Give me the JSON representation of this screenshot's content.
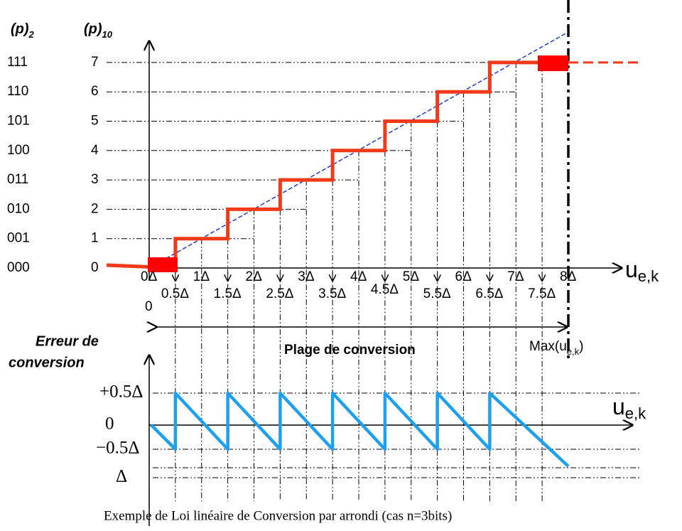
{
  "header": {
    "binary": {
      "text": "(p)",
      "sub": "2"
    },
    "decimal": {
      "text": "(p)",
      "sub": "10"
    }
  },
  "binary_codes": [
    "000",
    "001",
    "010",
    "011",
    "100",
    "101",
    "110",
    "111"
  ],
  "decimal_levels": [
    "0",
    "1",
    "2",
    "3",
    "4",
    "5",
    "6",
    "7"
  ],
  "x_labels": [
    "0Δ",
    "1Δ",
    "2Δ",
    "3Δ",
    "4Δ",
    "5Δ",
    "6Δ",
    "7Δ",
    "8Δ"
  ],
  "x_half_labels": [
    "0.5Δ",
    "1.5Δ",
    "2.5Δ",
    "3.5Δ",
    "4.5Δ",
    "5.5Δ",
    "6.5Δ",
    "7.5Δ"
  ],
  "origin_label": "0",
  "axis_label": {
    "text": "u",
    "sub": "e,k"
  },
  "range_label": "Plage de conversion",
  "max_label": {
    "text": "Max(u",
    "sub": "e,k",
    "end": ")"
  },
  "error_title": [
    "Erreur de",
    "conversion"
  ],
  "error_labels": [
    "+0.5Δ",
    "0",
    "−0.5Δ",
    "Δ"
  ],
  "caption": "Exemple de Loi linéaire de Conversion par arrondi (cas n=3bits)"
}
